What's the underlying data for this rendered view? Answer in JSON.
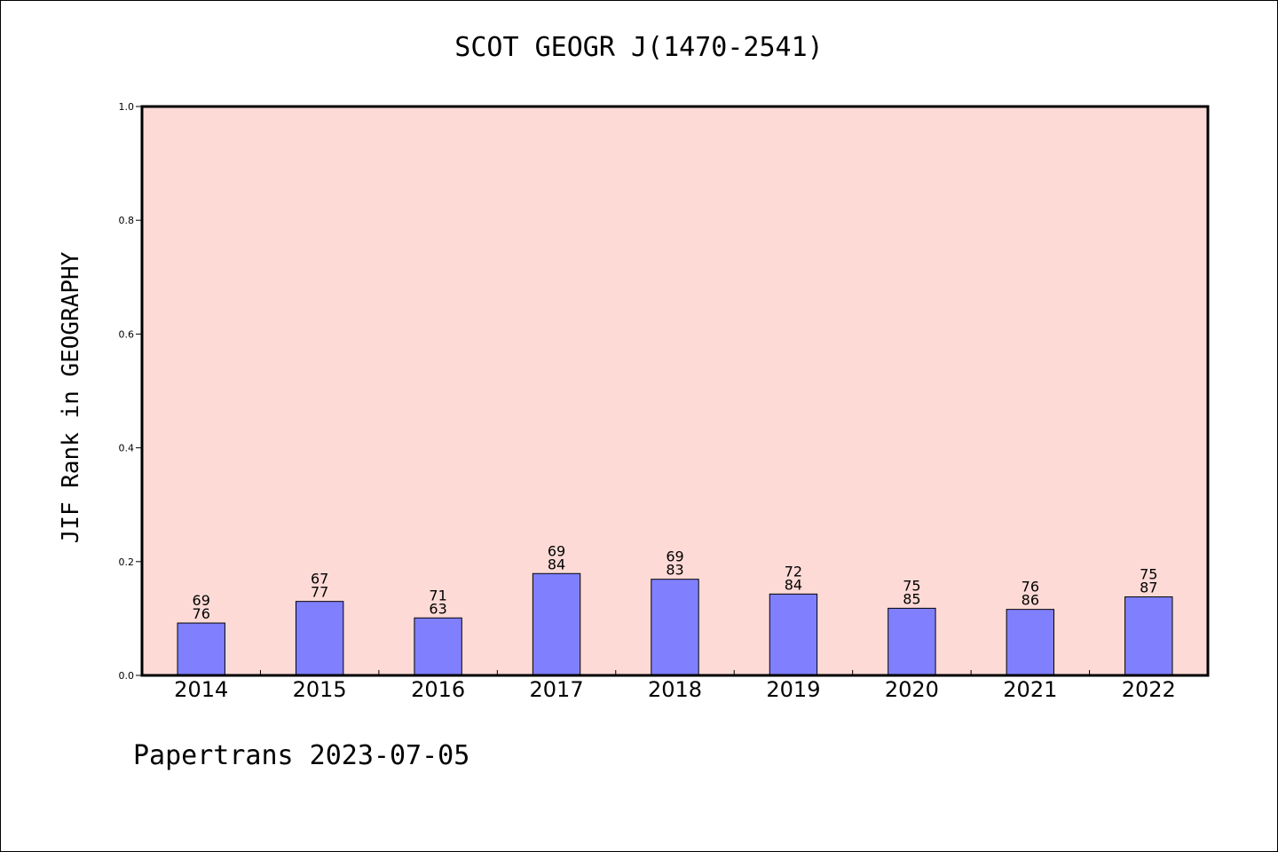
{
  "chart_data": {
    "type": "bar",
    "title": "SCOT GEOGR J(1470-2541)",
    "ylabel": "JIF Rank in GEOGRAPHY",
    "xlabel": "",
    "ylim": [
      0,
      1.0
    ],
    "yticks": [
      "0.0",
      "0.2",
      "0.4",
      "0.6",
      "0.8",
      "1.0"
    ],
    "grid": false,
    "categories": [
      "2014",
      "2015",
      "2016",
      "2017",
      "2018",
      "2019",
      "2020",
      "2021",
      "2022"
    ],
    "values": [
      0.092,
      0.13,
      0.101,
      0.179,
      0.169,
      0.143,
      0.118,
      0.116,
      0.138
    ],
    "bar_labels_top": [
      "69",
      "67",
      "71",
      "69",
      "69",
      "72",
      "75",
      "76",
      "75"
    ],
    "bar_labels_bottom": [
      "76",
      "77",
      "63",
      "84",
      "83",
      "84",
      "85",
      "86",
      "87"
    ],
    "colors": {
      "bar": "#8080ff",
      "plot_background": "#fddad6",
      "axis": "#000000"
    }
  },
  "footer": "Papertrans 2023-07-05"
}
